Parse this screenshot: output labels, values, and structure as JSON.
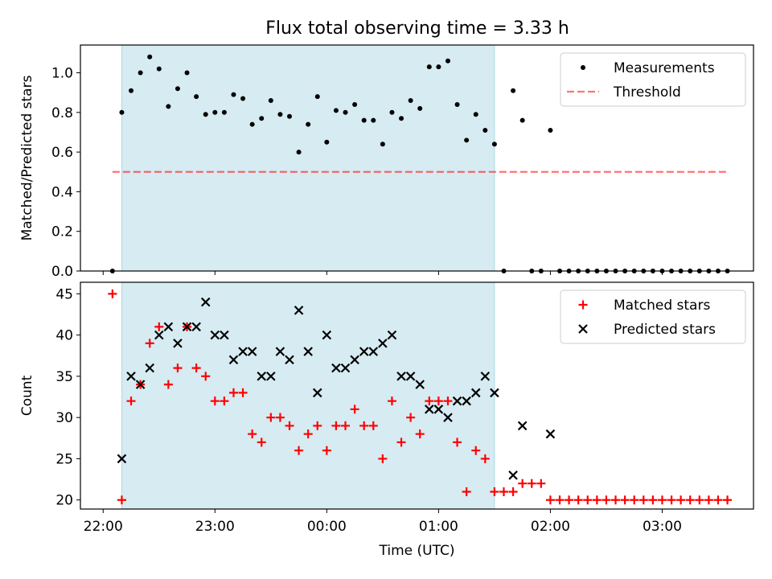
{
  "title": "Flux total observing time = 3.33 h",
  "colors": {
    "shade": "#add8e6",
    "threshold": "#ff0000",
    "matched": "#ff0000",
    "measurement": "#000000",
    "predicted": "#000000"
  },
  "chart_data": [
    {
      "type": "scatter",
      "ylabel": "Matched/Predicted stars",
      "ylim": [
        0,
        1.14
      ],
      "yticks": [
        0.0,
        0.2,
        0.4,
        0.6,
        0.8,
        1.0
      ],
      "ytick_labels": [
        "0.0",
        "0.2",
        "0.4",
        "0.6",
        "0.8",
        "1.0"
      ],
      "grid": false,
      "legend_position": "top-right",
      "legend": [
        "Measurements",
        "Threshold"
      ],
      "shaded_interval": [
        "22:10",
        "01:30"
      ],
      "threshold": {
        "name": "Threshold",
        "value": 0.5,
        "x_range": [
          "22:05",
          "03:35"
        ]
      },
      "series": [
        {
          "name": "Measurements",
          "x": [
            "22:05",
            "22:10",
            "22:15",
            "22:20",
            "22:25",
            "22:30",
            "22:35",
            "22:40",
            "22:45",
            "22:50",
            "22:55",
            "23:00",
            "23:05",
            "23:10",
            "23:15",
            "23:20",
            "23:25",
            "23:30",
            "23:35",
            "23:40",
            "23:45",
            "23:50",
            "23:55",
            "00:00",
            "00:05",
            "00:10",
            "00:15",
            "00:20",
            "00:25",
            "00:30",
            "00:35",
            "00:40",
            "00:45",
            "00:50",
            "00:55",
            "01:00",
            "01:05",
            "01:10",
            "01:15",
            "01:20",
            "01:25",
            "01:30",
            "01:35",
            "01:40",
            "01:45",
            "01:50",
            "01:55",
            "02:00",
            "02:05",
            "02:10",
            "02:15",
            "02:20",
            "02:25",
            "02:30",
            "02:35",
            "02:40",
            "02:45",
            "02:50",
            "02:55",
            "03:00",
            "03:05",
            "03:10",
            "03:15",
            "03:20",
            "03:25",
            "03:30",
            "03:35"
          ],
          "values": [
            0.0,
            0.8,
            0.91,
            1.0,
            1.08,
            1.02,
            0.83,
            0.92,
            1.0,
            0.88,
            0.79,
            0.8,
            0.8,
            0.89,
            0.87,
            0.74,
            0.77,
            0.86,
            0.79,
            0.78,
            0.6,
            0.74,
            0.88,
            0.65,
            0.81,
            0.8,
            0.84,
            0.76,
            0.76,
            0.64,
            0.8,
            0.77,
            0.86,
            0.82,
            1.03,
            1.03,
            1.06,
            0.84,
            0.66,
            0.79,
            0.71,
            0.64,
            0.0,
            0.91,
            0.76,
            0.0,
            0.0,
            0.71,
            0.0,
            0.0,
            0.0,
            0.0,
            0.0,
            0.0,
            0.0,
            0.0,
            0.0,
            0.0,
            0.0,
            0.0,
            0.0,
            0.0,
            0.0,
            0.0,
            0.0,
            0.0,
            0.0
          ]
        }
      ]
    },
    {
      "type": "scatter",
      "ylabel": "Count",
      "xlabel": "Time (UTC)",
      "ylim": [
        18.9,
        46.4
      ],
      "yticks": [
        20,
        25,
        30,
        35,
        40,
        45
      ],
      "ytick_labels": [
        "20",
        "25",
        "30",
        "35",
        "40",
        "45"
      ],
      "xticks": [
        "22:00",
        "23:00",
        "00:00",
        "01:00",
        "02:00",
        "03:00"
      ],
      "grid": false,
      "legend_position": "top-right",
      "legend": [
        "Matched stars",
        "Predicted stars"
      ],
      "shaded_interval": [
        "22:10",
        "01:30"
      ],
      "series": [
        {
          "name": "Matched stars",
          "x": [
            "22:05",
            "22:10",
            "22:15",
            "22:20",
            "22:25",
            "22:30",
            "22:35",
            "22:40",
            "22:45",
            "22:50",
            "22:55",
            "23:00",
            "23:05",
            "23:10",
            "23:15",
            "23:20",
            "23:25",
            "23:30",
            "23:35",
            "23:40",
            "23:45",
            "23:50",
            "23:55",
            "00:00",
            "00:05",
            "00:10",
            "00:15",
            "00:20",
            "00:25",
            "00:30",
            "00:35",
            "00:40",
            "00:45",
            "00:50",
            "00:55",
            "01:00",
            "01:05",
            "01:10",
            "01:15",
            "01:20",
            "01:25",
            "01:30",
            "01:35",
            "01:40",
            "01:45",
            "01:50",
            "01:55",
            "02:00",
            "02:05",
            "02:10",
            "02:15",
            "02:20",
            "02:25",
            "02:30",
            "02:35",
            "02:40",
            "02:45",
            "02:50",
            "02:55",
            "03:00",
            "03:05",
            "03:10",
            "03:15",
            "03:20",
            "03:25",
            "03:30",
            "03:35"
          ],
          "values": [
            45,
            20,
            32,
            34,
            39,
            41,
            34,
            36,
            41,
            36,
            35,
            32,
            32,
            33,
            33,
            28,
            27,
            30,
            30,
            29,
            26,
            28,
            29,
            26,
            29,
            29,
            31,
            29,
            29,
            25,
            32,
            27,
            30,
            28,
            32,
            32,
            32,
            27,
            21,
            26,
            25,
            21,
            21,
            21,
            22,
            22,
            22,
            20,
            20,
            20,
            20,
            20,
            20,
            20,
            20,
            20,
            20,
            20,
            20,
            20,
            20,
            20,
            20,
            20,
            20,
            20,
            20
          ]
        },
        {
          "name": "Predicted stars",
          "x": [
            "22:10",
            "22:15",
            "22:20",
            "22:25",
            "22:30",
            "22:35",
            "22:40",
            "22:45",
            "22:50",
            "22:55",
            "23:00",
            "23:05",
            "23:10",
            "23:15",
            "23:20",
            "23:25",
            "23:30",
            "23:35",
            "23:40",
            "23:45",
            "23:50",
            "23:55",
            "00:00",
            "00:05",
            "00:10",
            "00:15",
            "00:20",
            "00:25",
            "00:30",
            "00:35",
            "00:40",
            "00:45",
            "00:50",
            "00:55",
            "01:00",
            "01:05",
            "01:10",
            "01:15",
            "01:20",
            "01:25",
            "01:30",
            "01:40",
            "01:45",
            "02:00"
          ],
          "values": [
            25,
            35,
            34,
            36,
            40,
            41,
            39,
            41,
            41,
            44,
            40,
            40,
            37,
            38,
            38,
            35,
            35,
            38,
            37,
            43,
            38,
            33,
            40,
            36,
            36,
            37,
            38,
            38,
            39,
            40,
            35,
            35,
            34,
            31,
            31,
            30,
            32,
            32,
            33,
            35,
            33,
            23,
            29,
            28
          ]
        }
      ]
    }
  ]
}
